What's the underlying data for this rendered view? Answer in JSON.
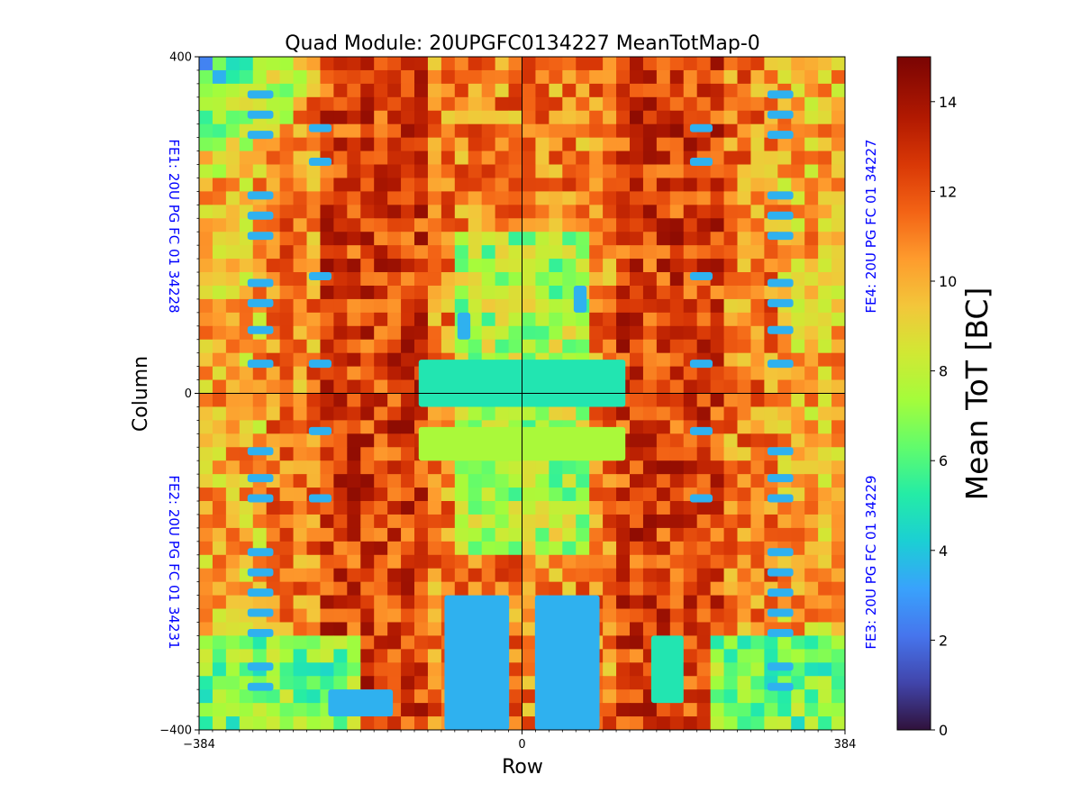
{
  "chart_data": {
    "type": "heatmap",
    "title": "Quad Module: 20UPGFC0134227 MeanTotMap-0",
    "xlabel": "Row",
    "ylabel": "Column",
    "xlim": [
      -384,
      384
    ],
    "ylim": [
      -400,
      400
    ],
    "x_ticks": [
      {
        "value": -384,
        "label": "−384"
      },
      {
        "value": 0,
        "label": "0"
      },
      {
        "value": 384,
        "label": "384"
      }
    ],
    "y_ticks": [
      {
        "value": 400,
        "label": "400"
      },
      {
        "value": 0,
        "label": "0"
      },
      {
        "value": -400,
        "label": "−400"
      }
    ],
    "colorbar": {
      "label": "Mean ToT [BC]",
      "range": [
        0,
        15
      ],
      "colormap": "turbo",
      "ticks": [
        {
          "value": 0,
          "label": "0"
        },
        {
          "value": 2,
          "label": "2"
        },
        {
          "value": 4,
          "label": "4"
        },
        {
          "value": 6,
          "label": "6"
        },
        {
          "value": 8,
          "label": "8"
        },
        {
          "value": 10,
          "label": "10"
        },
        {
          "value": 12,
          "label": "12"
        },
        {
          "value": 14,
          "label": "14"
        }
      ]
    },
    "chips": [
      {
        "id": "FE1",
        "label": "FE1: 20U PG FC 01 34228",
        "quadrant": "top-left"
      },
      {
        "id": "FE2",
        "label": "FE2: 20U PG FC 01 34231",
        "quadrant": "bottom-left"
      },
      {
        "id": "FE3",
        "label": "FE3: 20U PG FC 01 34229",
        "quadrant": "bottom-right"
      },
      {
        "id": "FE4",
        "label": "FE4: 20U PG FC 01 34227",
        "quadrant": "top-right"
      }
    ],
    "chip_label_color": "#0000ff",
    "divider_lines": {
      "x": 0,
      "y": 0
    }
  }
}
